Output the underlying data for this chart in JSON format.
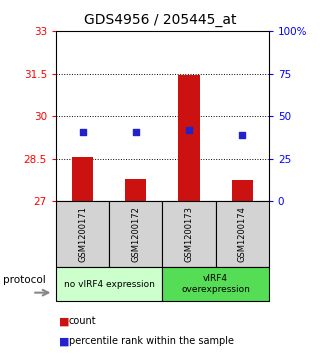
{
  "title": "GDS4956 / 205445_at",
  "samples": [
    "GSM1200171",
    "GSM1200172",
    "GSM1200173",
    "GSM1200174"
  ],
  "bar_values": [
    28.55,
    27.8,
    31.45,
    27.75
  ],
  "bar_bottom": 27.0,
  "blue_dot_values": [
    29.45,
    29.45,
    29.5,
    29.35
  ],
  "ylim_left": [
    27.0,
    33.0
  ],
  "yticks_left": [
    27,
    28.5,
    30,
    31.5,
    33
  ],
  "yticks_right_labels": [
    "0",
    "25",
    "50",
    "75",
    "100%"
  ],
  "yticks_right_values": [
    27.0,
    28.5,
    30.0,
    31.5,
    33.0
  ],
  "bar_color": "#cc1111",
  "dot_color": "#2222cc",
  "groups": [
    {
      "label": "no vIRF4 expression",
      "color": "#ccffcc"
    },
    {
      "label": "vIRF4\noverexpression",
      "color": "#55dd55"
    }
  ],
  "protocol_label": "protocol",
  "legend_count_label": "count",
  "legend_pct_label": "percentile rank within the sample",
  "title_fontsize": 10,
  "tick_fontsize": 7.5
}
